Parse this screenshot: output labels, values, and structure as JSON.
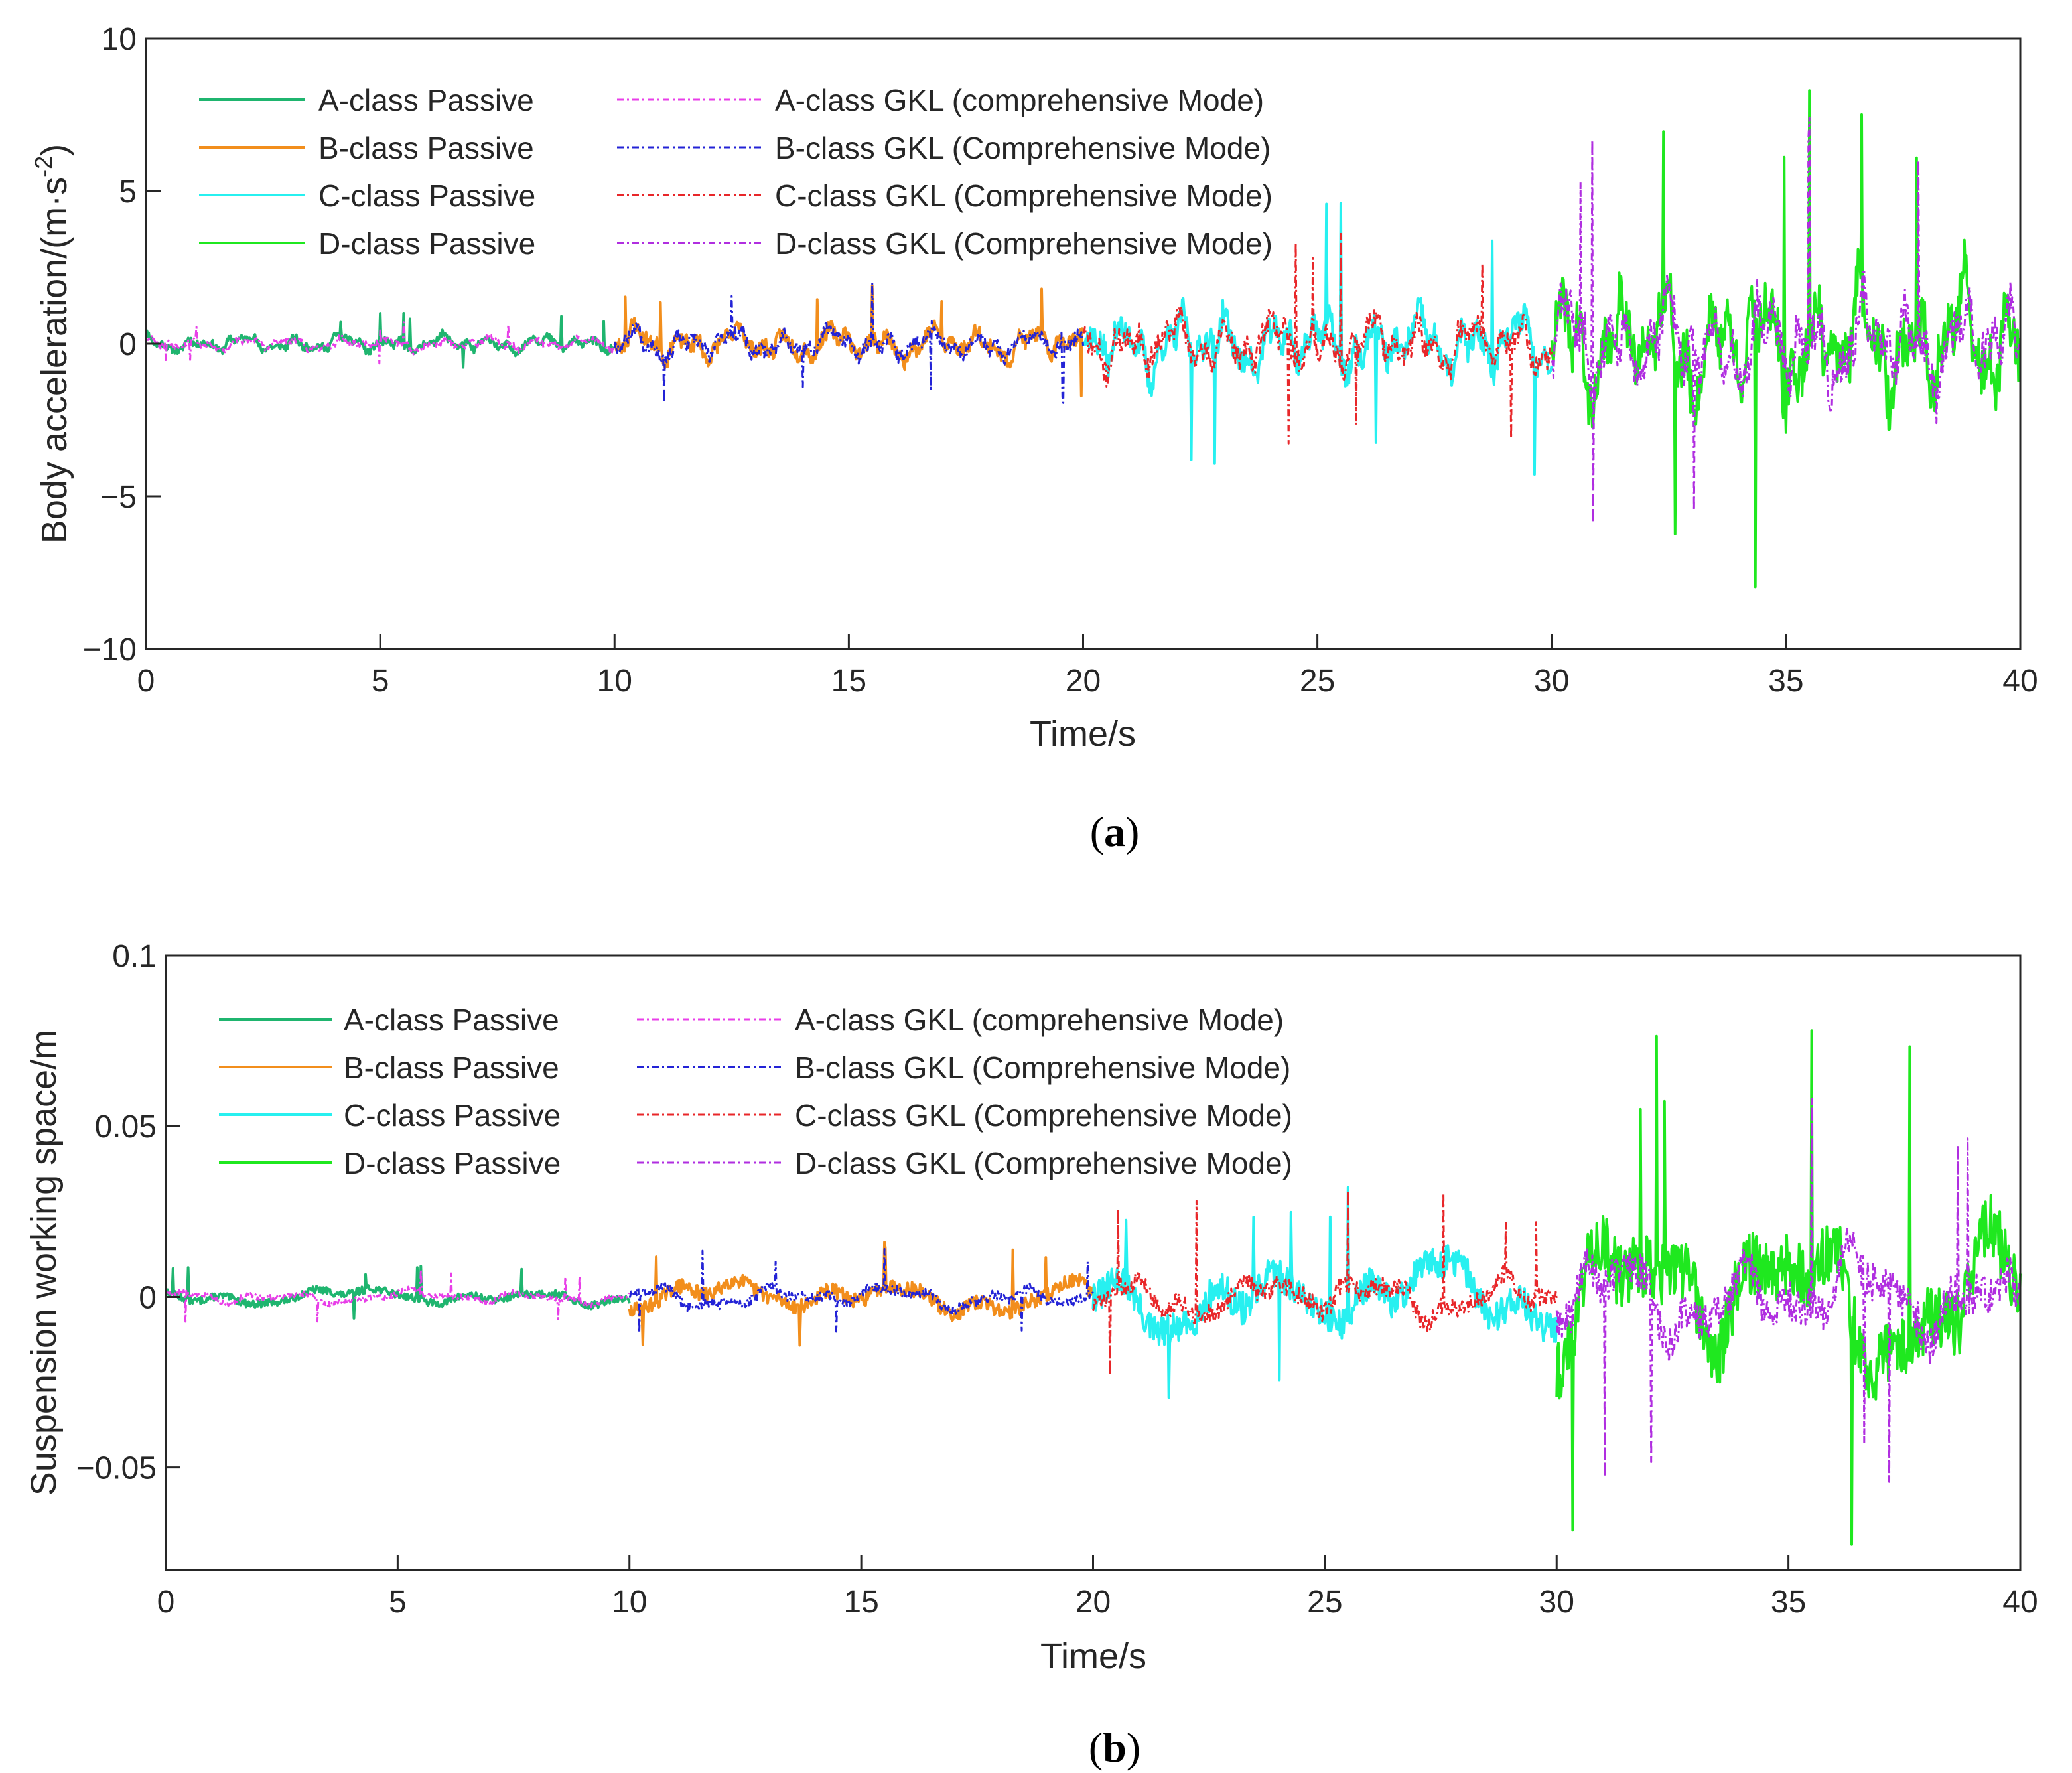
{
  "chart_data": [
    {
      "type": "line",
      "panel_label": "a",
      "title": "",
      "xlabel": "Time/s",
      "ylabel": "Body acceleration/(m·s",
      "ylabel_sup": "-2",
      "ylabel_tail": ")",
      "xlim": [
        0,
        40
      ],
      "ylim": [
        -10,
        10
      ],
      "xticks": [
        0,
        5,
        10,
        15,
        20,
        25,
        30,
        35,
        40
      ],
      "yticks": [
        -10,
        -5,
        0,
        5,
        10
      ],
      "ytick_labels": [
        "−10",
        "−5",
        "0",
        "5",
        "10"
      ],
      "grid": false,
      "legend_position": "top-left",
      "series": [
        {
          "name": "A-class Passive",
          "color": "#1fb56f",
          "style": "solid",
          "segment": [
            0,
            10
          ],
          "amplitude": 0.45,
          "peak": 1.0,
          "freq": 6,
          "seed": 11
        },
        {
          "name": "B-class Passive",
          "color": "#f28e1c",
          "style": "solid",
          "segment": [
            10,
            20
          ],
          "amplitude": 0.85,
          "peak": 1.9,
          "freq": 6,
          "seed": 23
        },
        {
          "name": "C-class Passive",
          "color": "#27f0f0",
          "style": "solid",
          "segment": [
            20,
            30
          ],
          "amplitude": 1.7,
          "peak": 4.6,
          "freq": 6,
          "seed": 37
        },
        {
          "name": "D-class Passive",
          "color": "#1fe81f",
          "style": "solid",
          "segment": [
            30,
            40
          ],
          "amplitude": 3.4,
          "peak": 8.3,
          "freq": 6,
          "seed": 41
        },
        {
          "name": "A-class GKL (comprehensive Mode)",
          "color": "#e83ee8",
          "style": "dashdot",
          "segment": [
            0,
            10
          ],
          "amplitude": 0.35,
          "peak": 0.7,
          "freq": 6,
          "seed": 53
        },
        {
          "name": "B-class GKL (Comprehensive Mode)",
          "color": "#2323d6",
          "style": "dashdot",
          "segment": [
            10,
            20
          ],
          "amplitude": 0.75,
          "peak": 2.0,
          "freq": 6,
          "seed": 67
        },
        {
          "name": "C-class GKL (Comprehensive Mode)",
          "color": "#e8272a",
          "style": "dashdot",
          "segment": [
            20,
            30
          ],
          "amplitude": 1.4,
          "peak": 3.6,
          "freq": 6,
          "seed": 71
        },
        {
          "name": "D-class GKL (Comprehensive Mode)",
          "color": "#b02ee0",
          "style": "dashdot",
          "segment": [
            30,
            40
          ],
          "amplitude": 2.6,
          "peak": 7.4,
          "freq": 6,
          "seed": 83
        }
      ]
    },
    {
      "type": "line",
      "panel_label": "b",
      "title": "",
      "xlabel": "Time/s",
      "ylabel": "Suspension working space/m",
      "ylabel_sup": "",
      "ylabel_tail": "",
      "xlim": [
        0,
        40
      ],
      "ylim": [
        -0.08,
        0.1
      ],
      "xticks": [
        0,
        5,
        10,
        15,
        20,
        25,
        30,
        35,
        40
      ],
      "yticks": [
        -0.05,
        0,
        0.05,
        0.1
      ],
      "ytick_labels": [
        "−0.05",
        "0",
        "0.05",
        "0.1"
      ],
      "grid": false,
      "legend_position": "top-left",
      "series": [
        {
          "name": "A-class Passive",
          "color": "#1fb56f",
          "style": "solid",
          "segment": [
            0,
            10
          ],
          "amplitude": 0.0035,
          "peak": 0.009,
          "freq": 1.6,
          "seed": 13
        },
        {
          "name": "B-class Passive",
          "color": "#f28e1c",
          "style": "solid",
          "segment": [
            10,
            20
          ],
          "amplitude": 0.007,
          "peak": 0.016,
          "freq": 1.6,
          "seed": 29
        },
        {
          "name": "C-class Passive",
          "color": "#27f0f0",
          "style": "solid",
          "segment": [
            20,
            30
          ],
          "amplitude": 0.015,
          "peak": 0.032,
          "freq": 1.6,
          "seed": 31
        },
        {
          "name": "D-class Passive",
          "color": "#1fe81f",
          "style": "solid",
          "segment": [
            30,
            40
          ],
          "amplitude": 0.03,
          "peak": 0.078,
          "freq": 1.6,
          "seed": 43
        },
        {
          "name": "A-class GKL (comprehensive Mode)",
          "color": "#e83ee8",
          "style": "dashdot",
          "segment": [
            0,
            10
          ],
          "amplitude": 0.003,
          "peak": 0.008,
          "freq": 2.4,
          "seed": 59
        },
        {
          "name": "B-class GKL (Comprehensive Mode)",
          "color": "#2323d6",
          "style": "dashdot",
          "segment": [
            10,
            20
          ],
          "amplitude": 0.005,
          "peak": 0.014,
          "freq": 2.4,
          "seed": 61
        },
        {
          "name": "C-class GKL (Comprehensive Mode)",
          "color": "#e8272a",
          "style": "dashdot",
          "segment": [
            20,
            30
          ],
          "amplitude": 0.01,
          "peak": 0.031,
          "freq": 2.4,
          "seed": 73
        },
        {
          "name": "D-class GKL (Comprehensive Mode)",
          "color": "#b02ee0",
          "style": "dashdot",
          "segment": [
            30,
            40
          ],
          "amplitude": 0.02,
          "peak": 0.058,
          "freq": 2.4,
          "seed": 89
        }
      ]
    }
  ]
}
